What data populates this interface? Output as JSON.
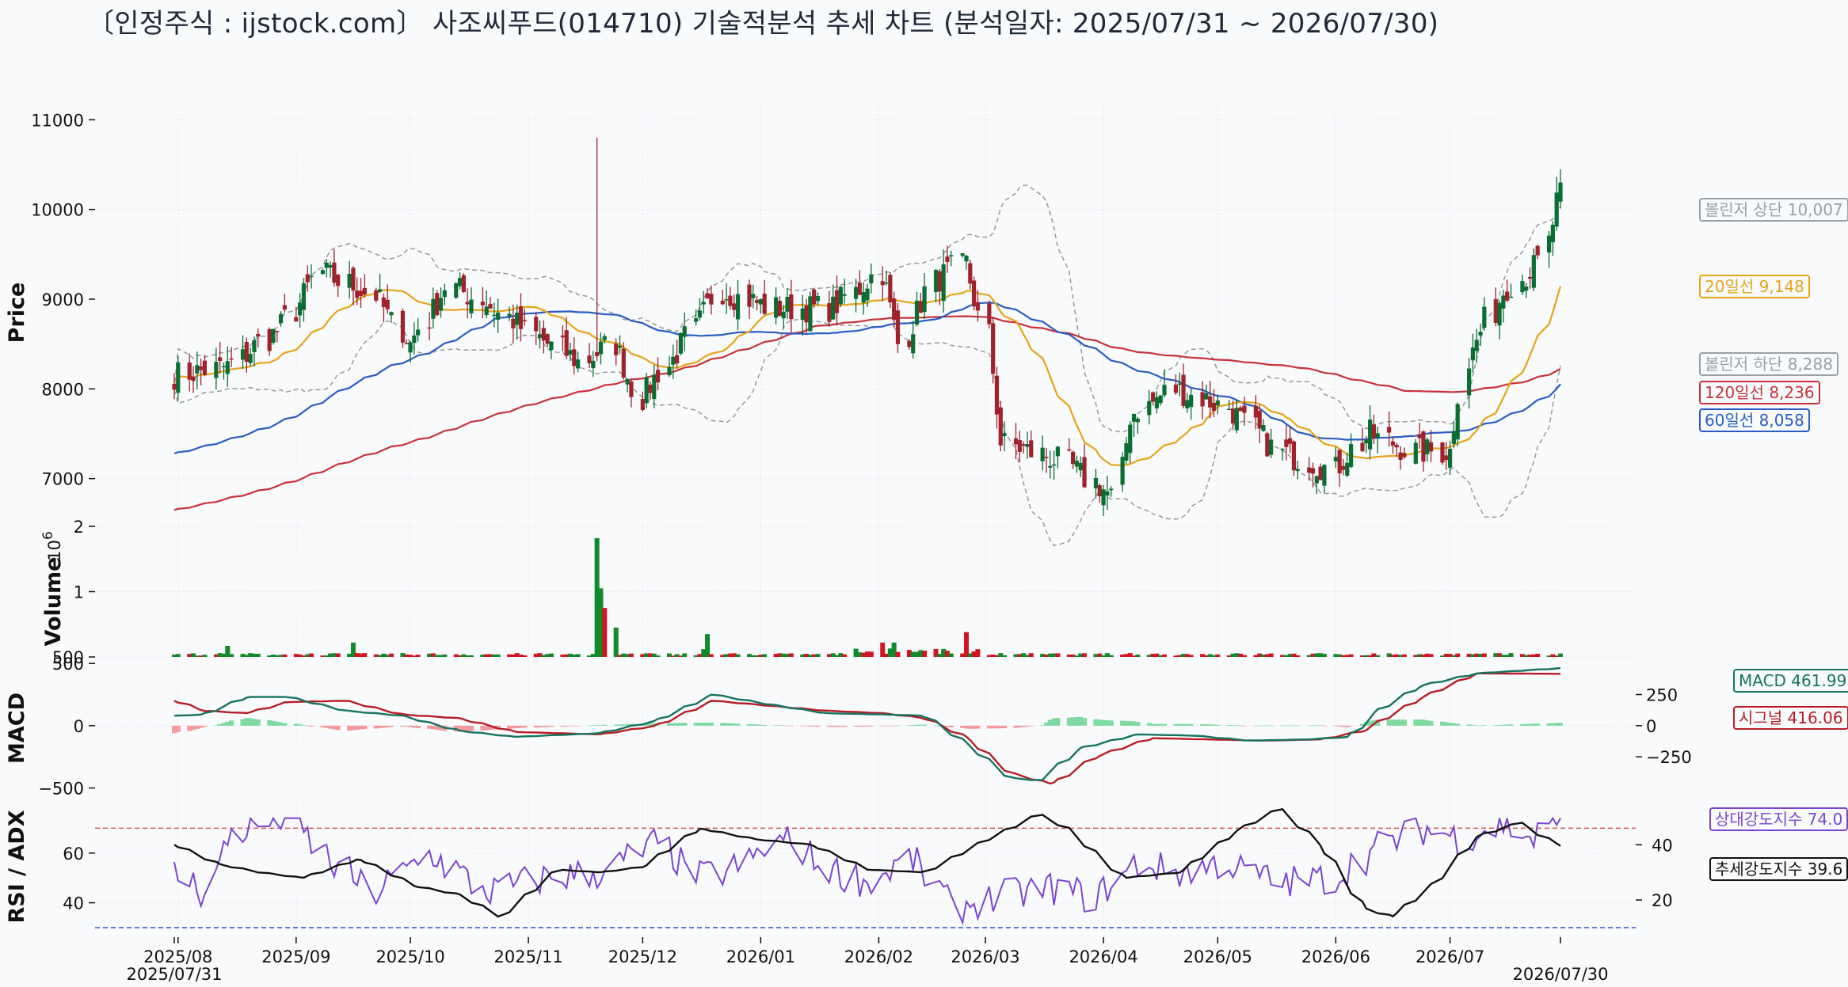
{
  "title": "〔인정주식 : ijstock.com〕 사조씨푸드(014710) 기술적분석 추세 차트 (분석일자: 2025/07/31 ~ 2026/07/30)",
  "colors": {
    "up": "#0a6e33",
    "down": "#a0222b",
    "ma20": "#e6a417",
    "ma60": "#2a5cc4",
    "ma120": "#c8323a",
    "bollinger": "#999999",
    "macd": "#16735f",
    "signal": "#b81d24",
    "hist_pos": "#7fd9a1",
    "hist_neg": "#f19a9d",
    "rsi": "#7b45d1",
    "adx": "#111111",
    "vol_up": "#118a2a",
    "vol_down": "#d31421"
  },
  "chart_data": [
    {
      "type": "candlestick",
      "ylabel": "Price",
      "ylim": [
        6600,
        11100
      ],
      "yticks": [
        7000,
        8000,
        9000,
        10000,
        11000
      ],
      "xticks": [
        "2025/08",
        "2025/09",
        "2025/10",
        "2025/11",
        "2025/12",
        "2026/01",
        "2026/02",
        "2026/03",
        "2026/04",
        "2026/05",
        "2026/06",
        "2026/07"
      ],
      "x_first": "2025/07/31",
      "x_last": "2026/07/30",
      "anchors": [
        {
          "date": "2025/07/31",
          "close": 8150
        },
        {
          "date": "2025/08/14",
          "close": 8250
        },
        {
          "date": "2025/08/28",
          "close": 8700
        },
        {
          "date": "2025/09/08",
          "close": 9300
        },
        {
          "date": "2025/09/22",
          "close": 9050
        },
        {
          "date": "2025/10/01",
          "close": 8500
        },
        {
          "date": "2025/10/10",
          "close": 9150
        },
        {
          "date": "2025/10/20",
          "close": 9000
        },
        {
          "date": "2025/11/03",
          "close": 8600
        },
        {
          "date": "2025/11/14",
          "close": 8300
        },
        {
          "date": "2025/11/24",
          "close": 8500
        },
        {
          "date": "2025/12/01",
          "close": 7900
        },
        {
          "date": "2025/12/10",
          "close": 8400
        },
        {
          "date": "2025/12/22",
          "close": 9100
        },
        {
          "date": "2026/01/05",
          "close": 8900
        },
        {
          "date": "2026/01/20",
          "close": 8900
        },
        {
          "date": "2026/02/02",
          "close": 9300
        },
        {
          "date": "2026/02/06",
          "close": 8500
        },
        {
          "date": "2026/02/16",
          "close": 9200
        },
        {
          "date": "2026/02/24",
          "close": 9400
        },
        {
          "date": "2026/03/02",
          "close": 8600
        },
        {
          "date": "2026/03/05",
          "close": 7400
        },
        {
          "date": "2026/03/20",
          "close": 7200
        },
        {
          "date": "2026/04/03",
          "close": 6800
        },
        {
          "date": "2026/04/08",
          "close": 7700
        },
        {
          "date": "2026/04/20",
          "close": 8000
        },
        {
          "date": "2026/05/04",
          "close": 7800
        },
        {
          "date": "2026/05/18",
          "close": 7300
        },
        {
          "date": "2026/06/01",
          "close": 7100
        },
        {
          "date": "2026/06/10",
          "close": 7500
        },
        {
          "date": "2026/06/22",
          "close": 7300
        },
        {
          "date": "2026/07/01",
          "close": 7300
        },
        {
          "date": "2026/07/06",
          "close": 8300
        },
        {
          "date": "2026/07/15",
          "close": 9100
        },
        {
          "date": "2026/07/24",
          "close": 9400
        },
        {
          "date": "2026/07/30",
          "close": 10300
        }
      ],
      "spike": {
        "date": "2025/11/19",
        "high": 10800
      },
      "series_last": [
        {
          "name": "볼린저 상단",
          "label": "볼린저 상단 10,007",
          "value": 10007
        },
        {
          "name": "20일선",
          "label": "20일선 9,148",
          "value": 9148
        },
        {
          "name": "볼린저 하단",
          "label": "볼린저 하단 8,288",
          "value": 8288
        },
        {
          "name": "120일선",
          "label": "120일선 8,236",
          "value": 8236
        },
        {
          "name": "60일선",
          "label": "60일선 8,058",
          "value": 8058
        }
      ],
      "ma60_start": 7280,
      "ma120_start": 6650
    },
    {
      "type": "bar",
      "ylabel": "Volume",
      "scale_label": "10^6",
      "ylim": [
        0,
        2.0
      ],
      "yticks": [
        "500",
        "1",
        "2"
      ],
      "ytick_values": [
        0,
        1,
        2
      ],
      "spikes": [
        {
          "date": "2025/11/19",
          "value": 1.82,
          "up": true
        },
        {
          "date": "2025/11/20",
          "value": 1.05,
          "up": true
        },
        {
          "date": "2025/11/21",
          "value": 0.75,
          "up": false
        },
        {
          "date": "2025/11/24",
          "value": 0.45,
          "up": true
        },
        {
          "date": "2025/08/14",
          "value": 0.17,
          "up": true
        },
        {
          "date": "2025/09/16",
          "value": 0.22,
          "up": true
        },
        {
          "date": "2025/12/17",
          "value": 0.12,
          "up": true
        },
        {
          "date": "2025/12/18",
          "value": 0.35,
          "up": true
        },
        {
          "date": "2026/02/02",
          "value": 0.22,
          "up": false
        },
        {
          "date": "2026/02/05",
          "value": 0.22,
          "up": true
        },
        {
          "date": "2026/02/24",
          "value": 0.38,
          "up": false
        }
      ]
    },
    {
      "type": "line",
      "ylabel": "MACD",
      "ylim": [
        -560,
        520
      ],
      "yticks_left": [
        "500",
        "0",
        "−500"
      ],
      "yticks_left_values": [
        500,
        0,
        -500
      ],
      "yticks_right": [
        "250",
        "0",
        "−250"
      ],
      "yticks_right_values": [
        250,
        0,
        -250
      ],
      "anchors_macd": [
        [
          0,
          80
        ],
        [
          10,
          90
        ],
        [
          25,
          230
        ],
        [
          40,
          230
        ],
        [
          60,
          120
        ],
        [
          80,
          80
        ],
        [
          100,
          -40
        ],
        [
          120,
          -90
        ],
        [
          150,
          -60
        ],
        [
          170,
          40
        ],
        [
          190,
          250
        ],
        [
          210,
          170
        ],
        [
          230,
          100
        ],
        [
          250,
          90
        ],
        [
          265,
          80
        ],
        [
          280,
          -150
        ],
        [
          295,
          -420
        ],
        [
          305,
          -440
        ],
        [
          320,
          -180
        ],
        [
          340,
          -70
        ],
        [
          360,
          -80
        ],
        [
          380,
          -120
        ],
        [
          400,
          -110
        ],
        [
          415,
          -90
        ],
        [
          425,
          120
        ],
        [
          440,
          320
        ],
        [
          460,
          420
        ],
        [
          490,
          461.99
        ]
      ],
      "anchors_signal": [
        [
          0,
          200
        ],
        [
          10,
          120
        ],
        [
          25,
          100
        ],
        [
          40,
          190
        ],
        [
          60,
          200
        ],
        [
          80,
          90
        ],
        [
          100,
          60
        ],
        [
          120,
          -50
        ],
        [
          150,
          -70
        ],
        [
          170,
          0
        ],
        [
          190,
          200
        ],
        [
          210,
          160
        ],
        [
          230,
          120
        ],
        [
          250,
          100
        ],
        [
          265,
          60
        ],
        [
          280,
          -100
        ],
        [
          295,
          -380
        ],
        [
          310,
          -470
        ],
        [
          325,
          -250
        ],
        [
          345,
          -100
        ],
        [
          365,
          -110
        ],
        [
          385,
          -120
        ],
        [
          405,
          -110
        ],
        [
          420,
          -40
        ],
        [
          440,
          220
        ],
        [
          460,
          420
        ],
        [
          490,
          416.06
        ]
      ],
      "series_last": [
        {
          "name": "MACD",
          "label": "MACD 461.99",
          "value": 461.99
        },
        {
          "name": "시그널",
          "label": "시그널 416.06",
          "value": 416.06
        }
      ]
    },
    {
      "type": "line",
      "ylabel": "RSI / ADX",
      "ylim_left": [
        30,
        80
      ],
      "ylim_right": [
        10,
        55
      ],
      "yticks_left": [
        40,
        60
      ],
      "yticks_right": [
        20,
        40
      ],
      "overbought": 70,
      "oversold": 30,
      "anchors_rsi": [
        [
          0,
          52
        ],
        [
          10,
          44
        ],
        [
          20,
          68
        ],
        [
          40,
          75
        ],
        [
          55,
          56
        ],
        [
          70,
          44
        ],
        [
          90,
          60
        ],
        [
          110,
          44
        ],
        [
          130,
          50
        ],
        [
          150,
          52
        ],
        [
          170,
          64
        ],
        [
          185,
          50
        ],
        [
          200,
          55
        ],
        [
          215,
          66
        ],
        [
          230,
          54
        ],
        [
          245,
          48
        ],
        [
          260,
          58
        ],
        [
          275,
          38
        ],
        [
          290,
          42
        ],
        [
          310,
          46
        ],
        [
          325,
          42
        ],
        [
          340,
          56
        ],
        [
          355,
          52
        ],
        [
          370,
          56
        ],
        [
          390,
          48
        ],
        [
          410,
          50
        ],
        [
          425,
          62
        ],
        [
          440,
          70
        ],
        [
          455,
          66
        ],
        [
          470,
          72
        ],
        [
          480,
          65
        ],
        [
          490,
          74.0
        ]
      ],
      "anchors_adx": [
        [
          0,
          40
        ],
        [
          15,
          33
        ],
        [
          30,
          30
        ],
        [
          45,
          28
        ],
        [
          65,
          35
        ],
        [
          85,
          25
        ],
        [
          100,
          22
        ],
        [
          115,
          14
        ],
        [
          135,
          31
        ],
        [
          150,
          30
        ],
        [
          165,
          32
        ],
        [
          185,
          46
        ],
        [
          205,
          42
        ],
        [
          225,
          40
        ],
        [
          245,
          31
        ],
        [
          265,
          30
        ],
        [
          285,
          41
        ],
        [
          305,
          51
        ],
        [
          315,
          46
        ],
        [
          335,
          28
        ],
        [
          355,
          30
        ],
        [
          375,
          45
        ],
        [
          390,
          53
        ],
        [
          405,
          40
        ],
        [
          420,
          17
        ],
        [
          430,
          14
        ],
        [
          445,
          26
        ],
        [
          460,
          43
        ],
        [
          475,
          48
        ],
        [
          485,
          42
        ],
        [
          490,
          39.6
        ]
      ],
      "series_last": [
        {
          "name": "상대강도지수",
          "label": "상대강도지수 74.0",
          "value": 74.0
        },
        {
          "name": "추세강도지수",
          "label": "추세강도지수 39.6",
          "value": 39.6
        }
      ]
    }
  ]
}
